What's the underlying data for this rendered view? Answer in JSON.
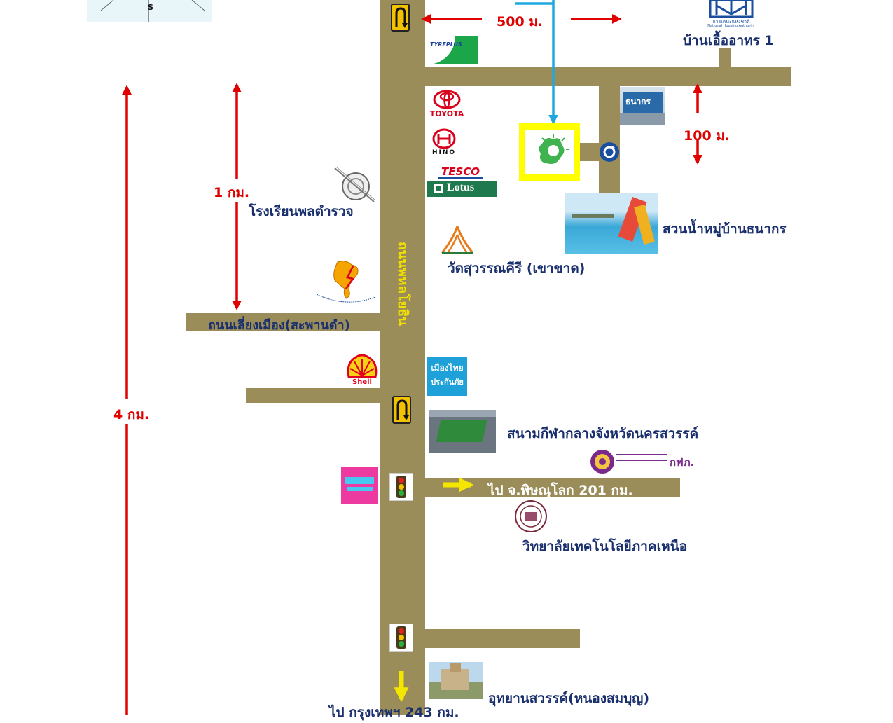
{
  "distances": {
    "top_arrow": "500 ม.",
    "right_arrow": "100 ม.",
    "left_short": "1 กม.",
    "left_long": "4 กม."
  },
  "roads": {
    "main_road_name": "ถนนพหลโยธิน",
    "ring_road": "ถนนเลี่ยงเมือง(สะพานดำ)",
    "to_phitsanulok": "ไป จ.พิษณุโลก 201 กม.",
    "to_bangkok": "ไป กรุงเทพฯ 243 กม."
  },
  "places": {
    "housing": "บ้านเอื้ออาทร 1",
    "police_school": "โรงเรียนพลตำรวจ",
    "waterpark": "สวนน้ำหมู่บ้านธนากร",
    "temple": "วัดสุวรรณคีรี (เขาขาด)",
    "stadium": "สนามกีฬากลางจังหวัดนครสวรรค์",
    "college": "วิทยาลัยเทคโนโลยีภาคเหนือ",
    "park": "อุทยานสวรรค์(หนองสมบุญ)"
  },
  "logos": {
    "tyreplus": "TYREPLUS",
    "toyota": "TOYOTA",
    "hino": "HINO",
    "tesco": "TESCO",
    "lotus": "Lotus",
    "thanakorn": "ธนากร",
    "shell": "Shell",
    "muangthai_1": "เมืองไทย",
    "muangthai_2": "ประกันภัย",
    "pea": "กฟภ.",
    "housing_authority": "การเคหะแห่งชาติ",
    "housing_authority_en": "National Housing Authority",
    "compass_s": "S"
  },
  "colors": {
    "road": "#9b8d59",
    "arrow_red": "#e00000",
    "label_blue": "#1a2f6e",
    "route_blue": "#1fa8e0",
    "highlight_yellow": "#ffff00"
  }
}
